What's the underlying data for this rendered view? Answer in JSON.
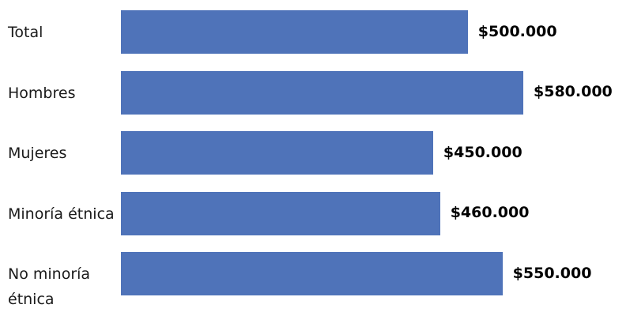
{
  "chart_data": {
    "type": "bar",
    "orientation": "horizontal",
    "categories": [
      "Total",
      "Hombres",
      "Mujeres",
      "Minoría étnica",
      "No minoría étnica"
    ],
    "values": [
      500000,
      580000,
      450000,
      460000,
      550000
    ],
    "value_labels": [
      "$500.000",
      "$580.000",
      "$450.000",
      "$460.000",
      "$550.000"
    ],
    "bar_color": "#4f73b9",
    "grid": false,
    "xlim": [
      0,
      1000000
    ],
    "title": "",
    "xlabel": "",
    "ylabel": ""
  }
}
